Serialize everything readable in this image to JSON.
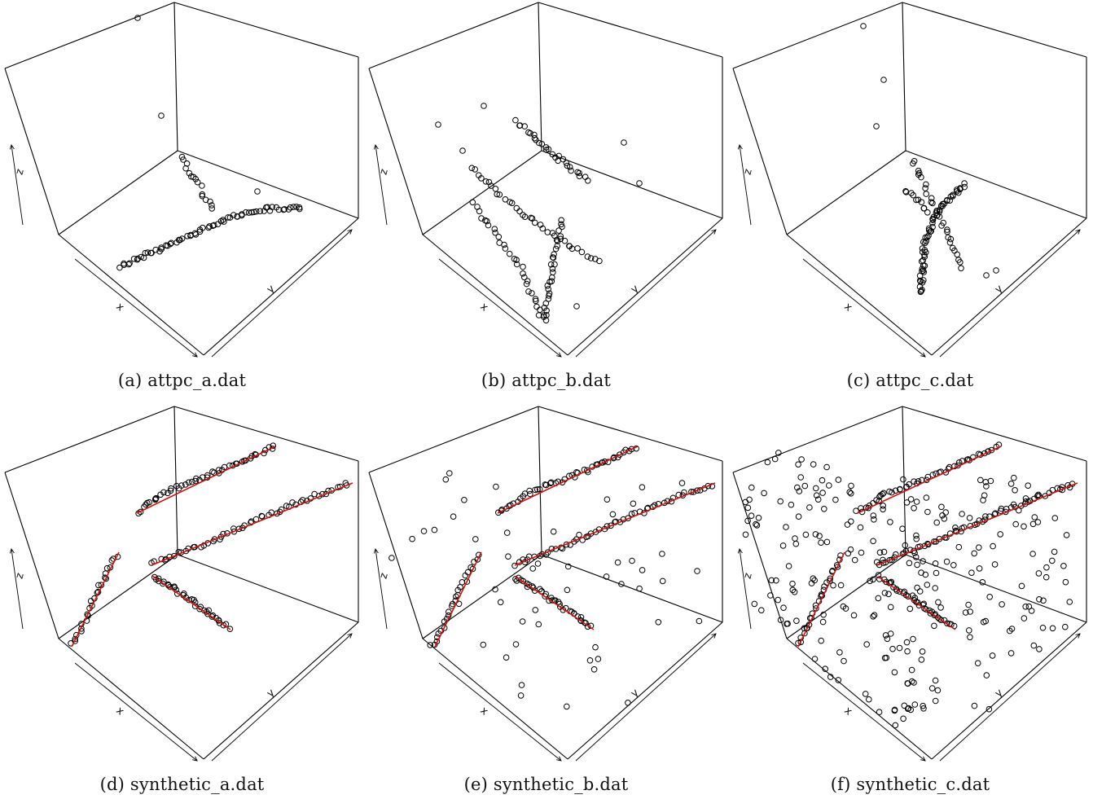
{
  "chart_data": [
    {
      "type": "scatter",
      "title": "(a) attpc_a.dat",
      "xlabel": "x",
      "ylabel": "y",
      "zlabel": "z",
      "projection": "3d-perspective-box",
      "grid": false,
      "points_panel": [
        [
          169,
          22
        ],
        [
          198,
          142
        ],
        [
          316,
          235
        ],
        {
          "track": [
            [
              147,
              328
            ],
            [
              180,
              312
            ],
            [
              215,
              297
            ],
            [
              250,
              282
            ],
            [
              285,
              266
            ],
            [
              320,
              257
            ],
            [
              372,
              255
            ]
          ],
          "n": 70
        },
        {
          "track": [
            [
              222,
              192
            ],
            [
              241,
              222
            ],
            [
              262,
              260
            ]
          ],
          "n": 16
        }
      ],
      "fit_lines": []
    },
    {
      "type": "scatter",
      "title": "(b) attpc_b.dat",
      "xlabel": "x",
      "ylabel": "y",
      "zlabel": "z",
      "projection": "3d-perspective-box",
      "grid": false,
      "points_panel": [
        [
          538,
          153
        ],
        [
          594,
          130
        ],
        [
          568,
          185
        ],
        [
          766,
          175
        ],
        [
          785,
          225
        ],
        [
          708,
          376
        ],
        {
          "track": [
            [
              634,
              148
            ],
            [
              660,
              172
            ],
            [
              690,
              198
            ],
            [
              722,
              223
            ]
          ],
          "n": 28
        },
        {
          "track": [
            [
              578,
              205
            ],
            [
              620,
              245
            ],
            [
              660,
              275
            ],
            [
              705,
              305
            ],
            [
              738,
              322
            ]
          ],
          "n": 36
        },
        {
          "track": [
            [
              580,
              250
            ],
            [
              610,
              290
            ],
            [
              640,
              330
            ],
            [
              668,
              395
            ]
          ],
          "n": 30
        },
        {
          "track": [
            [
              668,
              395
            ],
            [
              675,
              345
            ],
            [
              682,
              310
            ],
            [
              690,
              270
            ]
          ],
          "n": 30
        }
      ],
      "fit_lines": []
    },
    {
      "type": "scatter",
      "title": "(c) attpc_c.dat",
      "xlabel": "x",
      "ylabel": "y",
      "zlabel": "z",
      "projection": "3d-perspective-box",
      "grid": false,
      "points_panel": [
        [
          1060,
          32
        ],
        [
          1085,
          98
        ],
        [
          1076,
          155
        ],
        [
          1211,
          338
        ],
        [
          1223,
          332
        ],
        {
          "track": [
            [
              1120,
              195
            ],
            [
              1145,
              250
            ],
            [
              1165,
              290
            ],
            [
              1184,
              333
            ]
          ],
          "n": 28
        },
        {
          "track": [
            [
              1130,
              360
            ],
            [
              1135,
              300
            ],
            [
              1150,
              260
            ],
            [
              1186,
              225
            ]
          ],
          "n": 60
        },
        {
          "track": [
            [
              1110,
              233
            ],
            [
              1128,
              248
            ],
            [
              1140,
              262
            ]
          ],
          "n": 10
        }
      ],
      "fit_lines": []
    },
    {
      "type": "scatter",
      "title": "(d) synthetic_a.dat",
      "xlabel": "x",
      "ylabel": "y",
      "zlabel": "z",
      "projection": "3d-perspective-box",
      "grid": false,
      "points_panel": [
        {
          "track": [
            [
              168,
              629
            ],
            [
              200,
              605
            ],
            [
              240,
              590
            ],
            [
              280,
              573
            ],
            [
              320,
              555
            ],
            [
              338,
              548
            ]
          ],
          "n": 48
        },
        {
          "track": [
            [
              186,
              693
            ],
            [
              230,
              675
            ],
            [
              270,
              660
            ],
            [
              320,
              636
            ],
            [
              370,
              615
            ],
            [
              430,
              593
            ]
          ],
          "n": 55
        },
        {
          "track": [
            [
              88,
              793
            ],
            [
              105,
              760
            ],
            [
              120,
              722
            ],
            [
              145,
              680
            ]
          ],
          "n": 26
        },
        {
          "track": [
            [
              187,
              707
            ],
            [
              215,
              724
            ],
            [
              245,
              745
            ],
            [
              282,
              772
            ]
          ],
          "n": 36
        }
      ],
      "fit_lines": [
        [
          [
            168,
            630
          ],
          [
            338,
            548
          ]
        ],
        [
          [
            186,
            694
          ],
          [
            433,
            593
          ]
        ],
        [
          [
            88,
            794
          ],
          [
            146,
            678
          ]
        ],
        [
          [
            187,
            707
          ],
          [
            283,
            773
          ]
        ]
      ]
    },
    {
      "type": "scatter",
      "title": "(e) synthetic_b.dat",
      "xlabel": "x",
      "ylabel": "y",
      "zlabel": "z",
      "projection": "3d-perspective-box",
      "grid": false,
      "noise_count": 55,
      "points_panel": [
        {
          "track": [
            [
              611,
              629
            ],
            [
              650,
              605
            ],
            [
              690,
              590
            ],
            [
              730,
              573
            ],
            [
              770,
              555
            ],
            [
              783,
              548
            ]
          ],
          "n": 48
        },
        {
          "track": [
            [
              632,
              693
            ],
            [
              680,
              675
            ],
            [
              720,
              660
            ],
            [
              770,
              636
            ],
            [
              820,
              615
            ],
            [
              877,
              593
            ]
          ],
          "n": 55
        },
        {
          "track": [
            [
              534,
              793
            ],
            [
              550,
              760
            ],
            [
              565,
              722
            ],
            [
              590,
              680
            ]
          ],
          "n": 26
        },
        {
          "track": [
            [
              633,
              708
            ],
            [
              660,
              724
            ],
            [
              690,
              745
            ],
            [
              728,
              772
            ]
          ],
          "n": 36
        }
      ],
      "fit_lines": [
        [
          [
            611,
            630
          ],
          [
            783,
            548
          ]
        ],
        [
          [
            632,
            694
          ],
          [
            878,
            593
          ]
        ],
        [
          [
            534,
            794
          ],
          [
            591,
            678
          ]
        ],
        [
          [
            633,
            708
          ],
          [
            729,
            773
          ]
        ]
      ]
    },
    {
      "type": "scatter",
      "title": "(f) synthetic_c.dat",
      "xlabel": "x",
      "ylabel": "y",
      "zlabel": "z",
      "projection": "3d-perspective-box",
      "grid": false,
      "noise_count": 260,
      "points_panel": [
        {
          "track": [
            [
              1053,
              629
            ],
            [
              1090,
              605
            ],
            [
              1130,
              590
            ],
            [
              1170,
              573
            ],
            [
              1210,
              555
            ],
            [
              1229,
              548
            ]
          ],
          "n": 48
        },
        {
          "track": [
            [
              1077,
              693
            ],
            [
              1120,
              675
            ],
            [
              1160,
              660
            ],
            [
              1210,
              636
            ],
            [
              1260,
              615
            ],
            [
              1322,
              593
            ]
          ],
          "n": 55
        },
        {
          "track": [
            [
              980,
              793
            ],
            [
              995,
              760
            ],
            [
              1010,
              722
            ],
            [
              1036,
              680
            ]
          ],
          "n": 26
        },
        {
          "track": [
            [
              1078,
              708
            ],
            [
              1105,
              724
            ],
            [
              1135,
              745
            ],
            [
              1172,
              772
            ]
          ],
          "n": 36
        }
      ],
      "fit_lines": [
        [
          [
            1053,
            630
          ],
          [
            1229,
            548
          ]
        ],
        [
          [
            1077,
            694
          ],
          [
            1323,
            593
          ]
        ],
        [
          [
            980,
            794
          ],
          [
            1037,
            678
          ]
        ],
        [
          [
            1078,
            708
          ],
          [
            1173,
            773
          ]
        ]
      ]
    }
  ],
  "captions": {
    "a": "(a) attpc_a.dat",
    "b": "(b) attpc_b.dat",
    "c": "(c) attpc_c.dat",
    "d": "(d) synthetic_a.dat",
    "e": "(e) synthetic_b.dat",
    "f": "(f) synthetic_c.dat"
  },
  "axes": {
    "x": "x",
    "y": "y",
    "z": "z"
  }
}
